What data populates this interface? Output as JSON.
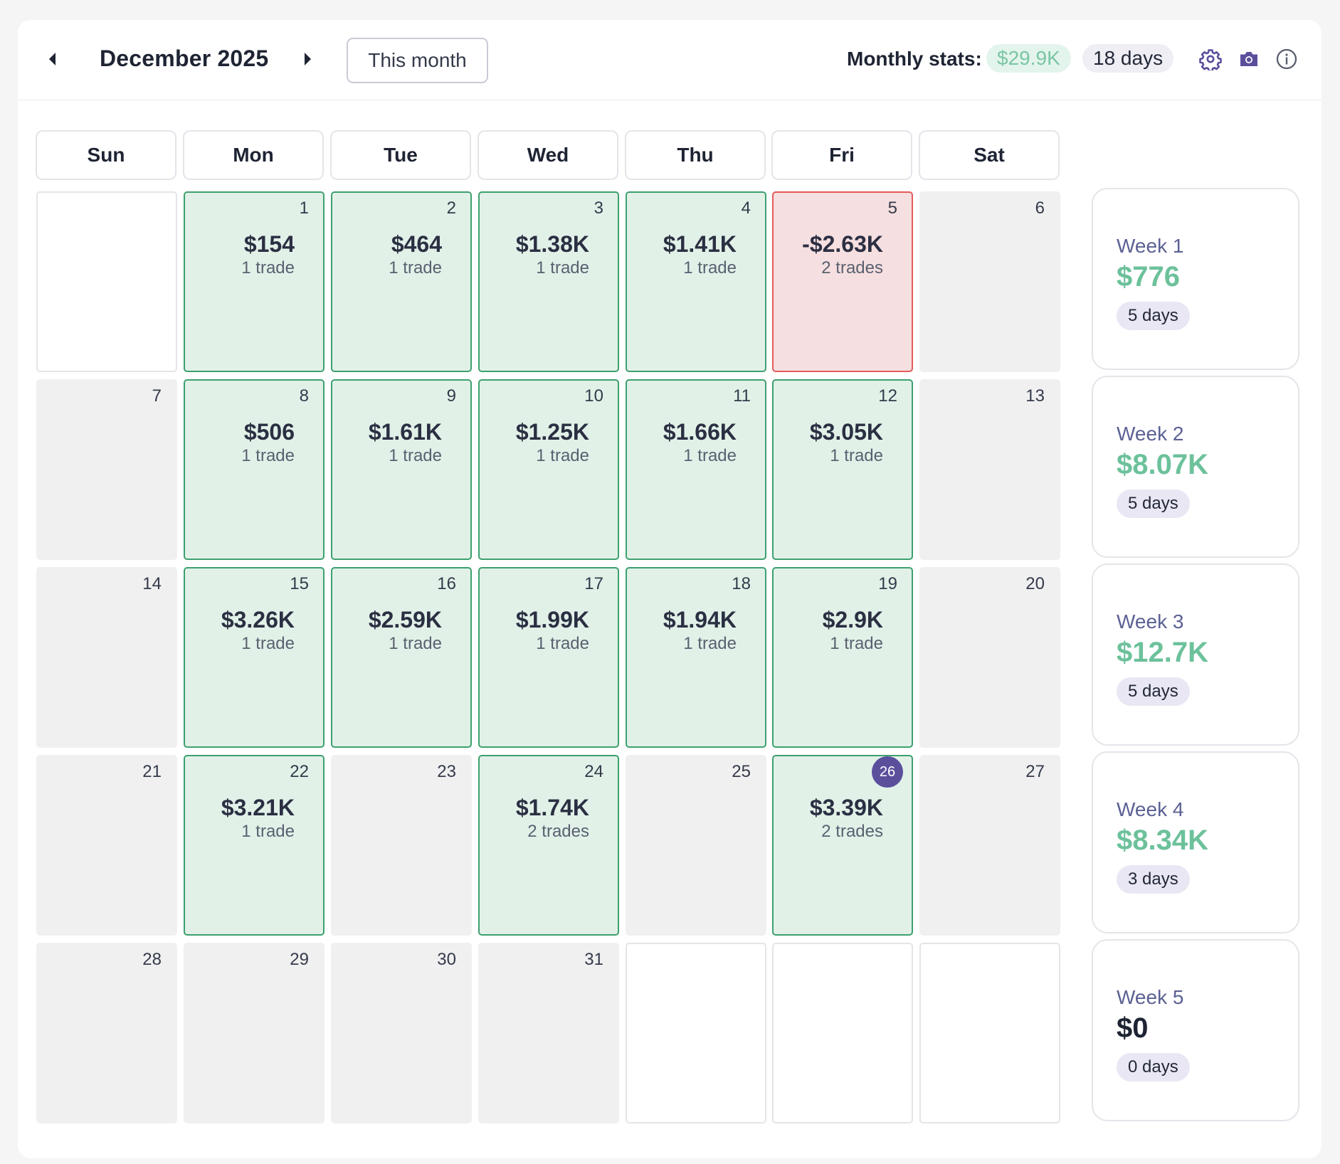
{
  "header": {
    "month_title": "December 2025",
    "this_month_label": "This month",
    "stats_label": "Monthly stats:",
    "stats_pnl": "$29.9K",
    "stats_days": "18 days",
    "icons": [
      "chevron-left-icon",
      "chevron-right-icon",
      "gear-icon",
      "camera-icon",
      "info-icon"
    ]
  },
  "colors": {
    "accent": "#5b4f9c",
    "win_bg": "#e1f1e8",
    "win_border": "#3ca06e",
    "loss_bg": "#f6dfe0",
    "loss_border": "#e55a5a",
    "positive_text": "#6cc19b",
    "neutral_text": "#1e2433"
  },
  "weekdays": [
    "Sun",
    "Mon",
    "Tue",
    "Wed",
    "Thu",
    "Fri",
    "Sat"
  ],
  "days": [
    {
      "type": "blank"
    },
    {
      "num": "1",
      "type": "win",
      "pnl": "$154",
      "trades": "1 trade"
    },
    {
      "num": "2",
      "type": "win",
      "pnl": "$464",
      "trades": "1 trade"
    },
    {
      "num": "3",
      "type": "win",
      "pnl": "$1.38K",
      "trades": "1 trade"
    },
    {
      "num": "4",
      "type": "win",
      "pnl": "$1.41K",
      "trades": "1 trade"
    },
    {
      "num": "5",
      "type": "loss",
      "pnl": "-$2.63K",
      "trades": "2 trades"
    },
    {
      "num": "6",
      "type": "empty"
    },
    {
      "num": "7",
      "type": "empty"
    },
    {
      "num": "8",
      "type": "win",
      "pnl": "$506",
      "trades": "1 trade"
    },
    {
      "num": "9",
      "type": "win",
      "pnl": "$1.61K",
      "trades": "1 trade"
    },
    {
      "num": "10",
      "type": "win",
      "pnl": "$1.25K",
      "trades": "1 trade"
    },
    {
      "num": "11",
      "type": "win",
      "pnl": "$1.66K",
      "trades": "1 trade"
    },
    {
      "num": "12",
      "type": "win",
      "pnl": "$3.05K",
      "trades": "1 trade"
    },
    {
      "num": "13",
      "type": "empty"
    },
    {
      "num": "14",
      "type": "empty"
    },
    {
      "num": "15",
      "type": "win",
      "pnl": "$3.26K",
      "trades": "1 trade"
    },
    {
      "num": "16",
      "type": "win",
      "pnl": "$2.59K",
      "trades": "1 trade"
    },
    {
      "num": "17",
      "type": "win",
      "pnl": "$1.99K",
      "trades": "1 trade"
    },
    {
      "num": "18",
      "type": "win",
      "pnl": "$1.94K",
      "trades": "1 trade"
    },
    {
      "num": "19",
      "type": "win",
      "pnl": "$2.9K",
      "trades": "1 trade"
    },
    {
      "num": "20",
      "type": "empty"
    },
    {
      "num": "21",
      "type": "empty"
    },
    {
      "num": "22",
      "type": "win",
      "pnl": "$3.21K",
      "trades": "1 trade"
    },
    {
      "num": "23",
      "type": "empty"
    },
    {
      "num": "24",
      "type": "win",
      "pnl": "$1.74K",
      "trades": "2 trades"
    },
    {
      "num": "25",
      "type": "empty"
    },
    {
      "num": "26",
      "type": "win",
      "pnl": "$3.39K",
      "trades": "2 trades",
      "today": true
    },
    {
      "num": "27",
      "type": "empty"
    },
    {
      "num": "28",
      "type": "empty"
    },
    {
      "num": "29",
      "type": "empty"
    },
    {
      "num": "30",
      "type": "empty"
    },
    {
      "num": "31",
      "type": "empty"
    },
    {
      "type": "blank"
    },
    {
      "type": "blank"
    },
    {
      "type": "blank"
    }
  ],
  "weeks": [
    {
      "label": "Week 1",
      "value": "$776",
      "days": "5 days",
      "positive": true
    },
    {
      "label": "Week 2",
      "value": "$8.07K",
      "days": "5 days",
      "positive": true
    },
    {
      "label": "Week 3",
      "value": "$12.7K",
      "days": "5 days",
      "positive": true
    },
    {
      "label": "Week 4",
      "value": "$8.34K",
      "days": "3 days",
      "positive": true
    },
    {
      "label": "Week 5",
      "value": "$0",
      "days": "0 days",
      "positive": false
    }
  ]
}
